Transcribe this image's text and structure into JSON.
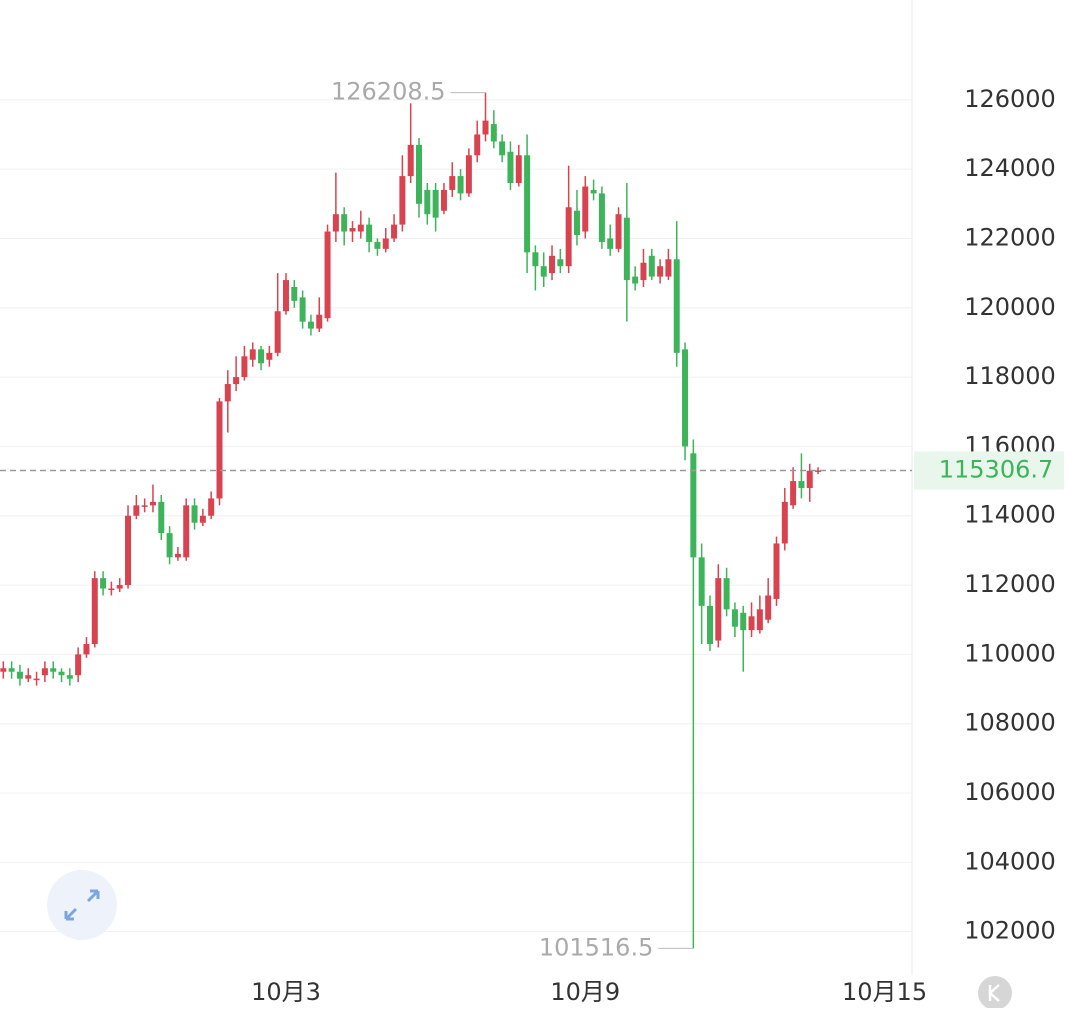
{
  "chart_data": {
    "type": "candlestick",
    "x": [
      0,
      1,
      2,
      3,
      4,
      5,
      6,
      7,
      8,
      9,
      10,
      11,
      12,
      13,
      14,
      15,
      16,
      17,
      18,
      19,
      20,
      21,
      22,
      23,
      24,
      25,
      26,
      27,
      28,
      29,
      30,
      31,
      32,
      33,
      34,
      35,
      36,
      37,
      38,
      39,
      40,
      41,
      42,
      43,
      44,
      45,
      46,
      47,
      48,
      49,
      50,
      51,
      52,
      53,
      54,
      55,
      56,
      57,
      58,
      59,
      60,
      61,
      62,
      63,
      64,
      65,
      66,
      67,
      68,
      69,
      70,
      71,
      72,
      73,
      74,
      75,
      76,
      77,
      78,
      79,
      80,
      81,
      82,
      83,
      84,
      85,
      86,
      87,
      88,
      89,
      90,
      91,
      92,
      93,
      94,
      95,
      96,
      97,
      98
    ],
    "open": [
      109500,
      109600,
      109500,
      109300,
      109300,
      109400,
      109600,
      109500,
      109400,
      109400,
      110000,
      110300,
      112200,
      111900,
      111900,
      112000,
      114000,
      114300,
      114300,
      114400,
      113500,
      112800,
      112800,
      114300,
      113800,
      114000,
      114500,
      117300,
      117800,
      118000,
      118500,
      118800,
      118500,
      118700,
      119900,
      120600,
      120300,
      119600,
      119400,
      119700,
      122200,
      122700,
      122200,
      122200,
      122400,
      121900,
      121700,
      122000,
      122400,
      123800,
      124700,
      123400,
      123400,
      122800,
      123400,
      123800,
      123300,
      124400,
      125000,
      125300,
      124800,
      124500,
      123600,
      124400,
      121600,
      121200,
      121000,
      121400,
      121200,
      122800,
      122200,
      123400,
      123300,
      122000,
      121700,
      122600,
      120900,
      120800,
      121500,
      120900,
      120900,
      121400,
      118800,
      115800,
      112800,
      111400,
      110400,
      112200,
      111300,
      111200,
      110700,
      110700,
      111000,
      111600,
      113200,
      114300,
      115000,
      114800,
      115300
    ],
    "high": [
      109800,
      109800,
      109700,
      109600,
      109500,
      109800,
      109800,
      109600,
      109600,
      110200,
      110500,
      112400,
      112400,
      112100,
      112200,
      114300,
      114600,
      114500,
      114900,
      114600,
      113700,
      113100,
      114500,
      114500,
      114200,
      114700,
      117400,
      118200,
      118600,
      118900,
      119000,
      118900,
      118900,
      121000,
      121000,
      120800,
      120500,
      119800,
      120300,
      122400,
      123900,
      122900,
      122500,
      122800,
      122600,
      122000,
      122300,
      122700,
      124400,
      125900,
      124900,
      123600,
      123600,
      123600,
      124200,
      124000,
      124600,
      125400,
      126208.5,
      125700,
      125000,
      124800,
      124700,
      125000,
      121800,
      121600,
      121800,
      121700,
      124100,
      123400,
      123800,
      123700,
      123500,
      122400,
      122900,
      123600,
      121200,
      121700,
      121700,
      121400,
      121700,
      122500,
      119000,
      116200,
      113200,
      111700,
      112600,
      112500,
      111500,
      111400,
      111500,
      111700,
      112200,
      113400,
      114800,
      115400,
      115800,
      115500,
      115400
    ],
    "low": [
      109300,
      109300,
      109100,
      109200,
      109100,
      109200,
      109300,
      109200,
      109100,
      109200,
      109900,
      110200,
      111700,
      111700,
      111800,
      111900,
      113900,
      114100,
      114100,
      113300,
      112600,
      112700,
      112700,
      113600,
      113700,
      113900,
      114300,
      116400,
      117600,
      117900,
      118300,
      118200,
      118300,
      118600,
      119800,
      120000,
      119400,
      119200,
      119300,
      119600,
      121900,
      121800,
      121900,
      122000,
      121600,
      121500,
      121600,
      121900,
      122200,
      123600,
      122600,
      122400,
      122200,
      122700,
      123200,
      123100,
      123200,
      124200,
      124800,
      124600,
      124200,
      123400,
      123500,
      121000,
      120500,
      120600,
      120800,
      121000,
      121000,
      121800,
      122000,
      123100,
      121700,
      121500,
      121600,
      119600,
      120500,
      120600,
      120800,
      120700,
      120800,
      118300,
      115600,
      101516.5,
      110300,
      110100,
      110200,
      111100,
      110500,
      109500,
      110500,
      110600,
      110900,
      111400,
      113000,
      114200,
      114500,
      114400,
      115200
    ],
    "close": [
      109600,
      109500,
      109300,
      109400,
      109300,
      109600,
      109500,
      109400,
      109300,
      110000,
      110300,
      112200,
      111900,
      111900,
      112000,
      114000,
      114300,
      114300,
      114400,
      113500,
      112800,
      112900,
      114300,
      113800,
      114000,
      114500,
      117300,
      117800,
      118000,
      118600,
      118800,
      118400,
      118700,
      119900,
      120800,
      120200,
      119600,
      119400,
      119800,
      122200,
      122700,
      122200,
      122300,
      122400,
      121900,
      121700,
      122000,
      122400,
      123800,
      124700,
      123000,
      122700,
      122600,
      123400,
      123800,
      123300,
      124400,
      125000,
      125400,
      124800,
      124400,
      123600,
      124400,
      121600,
      121200,
      120900,
      121500,
      121200,
      122900,
      122100,
      123500,
      123300,
      121900,
      121700,
      122700,
      120800,
      120700,
      121300,
      120900,
      121200,
      121400,
      118700,
      116000,
      112800,
      111400,
      110300,
      112200,
      111300,
      110800,
      110700,
      111100,
      111300,
      111700,
      113200,
      114400,
      115000,
      114800,
      115300,
      115306.7
    ],
    "up_color": "#d9434f",
    "down_color": "#3db45a",
    "xlim": [
      -0.4,
      109.3
    ],
    "xticks": [
      {
        "value": 34,
        "label": "10月3"
      },
      {
        "value": 70,
        "label": "10月9"
      },
      {
        "value": 106,
        "label": "10月15"
      }
    ],
    "ylim": [
      100750,
      128880
    ],
    "yticks": [
      102000,
      104000,
      106000,
      108000,
      110000,
      112000,
      114000,
      116000,
      118000,
      120000,
      122000,
      124000,
      126000
    ],
    "grid": true
  }
}
